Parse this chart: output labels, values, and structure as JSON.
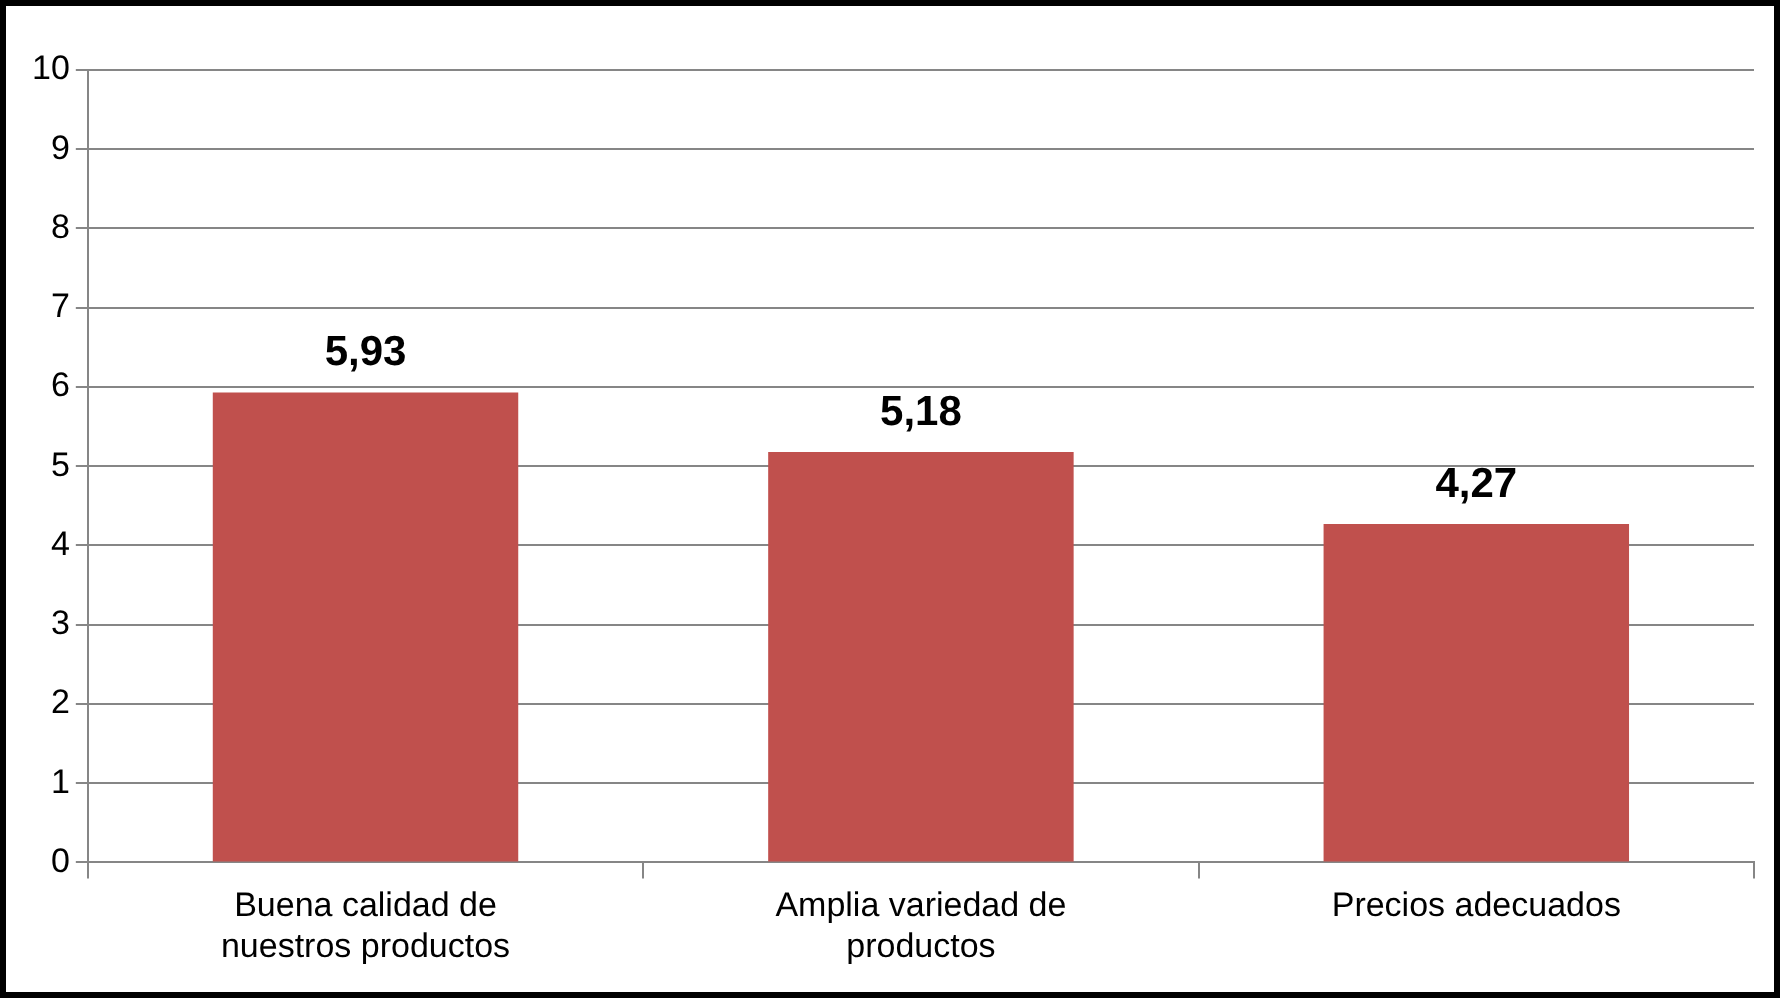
{
  "chart_data": {
    "type": "bar",
    "categories": [
      "Buena calidad de nuestros productos",
      "Amplia variedad de productos",
      "Precios adecuados"
    ],
    "values": [
      5.93,
      5.18,
      4.27
    ],
    "value_labels": [
      "5,93",
      "5,18",
      "4,27"
    ],
    "color": "#c0504d",
    "ylim": [
      0,
      10
    ],
    "yticks": [
      0,
      1,
      2,
      3,
      4,
      5,
      6,
      7,
      8,
      9,
      10
    ],
    "grid": "y",
    "legend": false
  }
}
